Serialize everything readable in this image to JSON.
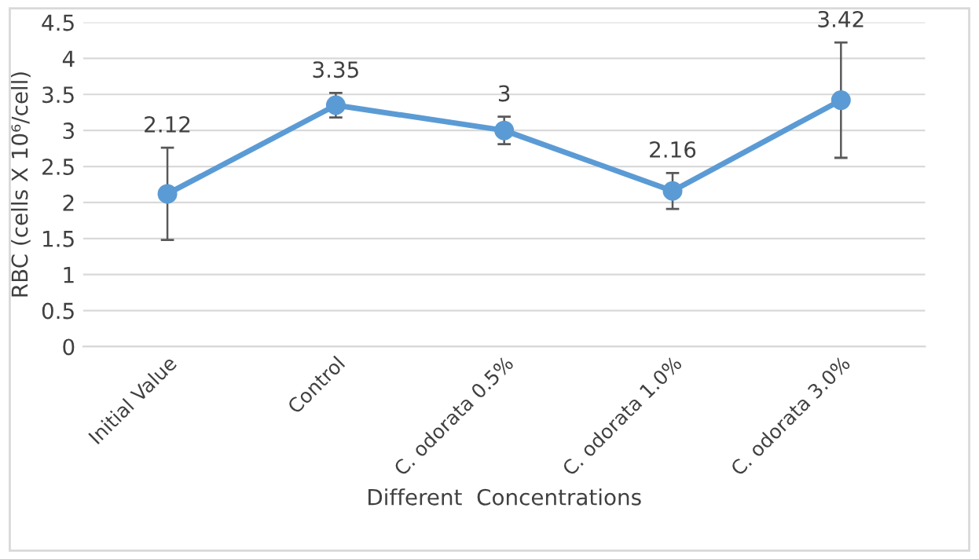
{
  "chart_data": {
    "type": "line",
    "xlabel": "Different  Concentrations",
    "ylabel": "RBC (cells X 10⁶/cell)",
    "categories": [
      "Initial Value",
      "Control",
      "C. odorata 0.5%",
      "C. odorata 1.0%",
      "C. odorata 3.0%"
    ],
    "series": [
      {
        "color": "#5b9bd5",
        "values": [
          2.12,
          3.35,
          3,
          2.16,
          3.42
        ],
        "errors": [
          0.64,
          0.17,
          0.19,
          0.25,
          0.8
        ]
      }
    ],
    "data_labels": true,
    "marker": "circle",
    "line_style": "solid",
    "grid": "y",
    "ylim": [
      0,
      4.5
    ],
    "yticks": [
      0,
      0.5,
      1,
      1.5,
      2,
      2.5,
      3,
      3.5,
      4,
      4.5
    ]
  }
}
